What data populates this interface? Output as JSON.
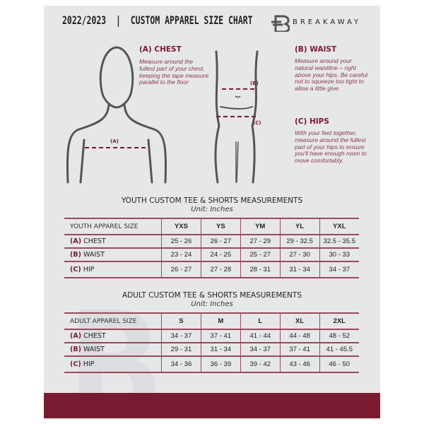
{
  "header": {
    "title": "2022/2023  |  CUSTOM APPAREL SIZE CHART",
    "brand": "BREAKAWAY"
  },
  "measures": {
    "chest": {
      "title": "(A) CHEST",
      "desc": "Measure around the fullest part of your chest, keeping the tape measure parallel to the floor",
      "marker": "(A)"
    },
    "waist": {
      "title": "(B) WAIST",
      "desc": "Measure around your natural waistline – right above your hips. Be careful not to squeeze too tight to allow a little give.",
      "marker": "(B)"
    },
    "hips": {
      "title": "(C) HIPS",
      "desc": "With your feet together, measure around the fullest part of your hips to ensure you'll have enough room to move comfortably.",
      "marker": "(C)"
    }
  },
  "youth": {
    "title": "YOUTH CUSTOM TEE & SHORTS MEASUREMENTS",
    "unit": "Unit: Inches",
    "header": "YOUTH APPAREL SIZE",
    "sizes": [
      "YXS",
      "YS",
      "YM",
      "YL",
      "YXL"
    ],
    "rows": [
      {
        "letter": "(A)",
        "name": "CHEST",
        "values": [
          "25 - 26",
          "26 - 27",
          "27 - 29",
          "29 - 32.5",
          "32.5 - 35.5"
        ]
      },
      {
        "letter": "(B)",
        "name": "WAIST",
        "values": [
          "23 - 24",
          "24 - 25",
          "25 - 27",
          "27 - 30",
          "30 - 33"
        ]
      },
      {
        "letter": "(C)",
        "name": "HIP",
        "values": [
          "26 - 27",
          "27 - 28",
          "28 - 31",
          "31 - 34",
          "34 - 37"
        ]
      }
    ]
  },
  "adult": {
    "title": "ADULT CUSTOM TEE & SHORTS MEASUREMENTS",
    "unit": "Unit: Inches",
    "header": "ADULT APPAREL SIZE",
    "sizes": [
      "S",
      "M",
      "L",
      "XL",
      "2XL"
    ],
    "rows": [
      {
        "letter": "(A)",
        "name": "CHEST",
        "values": [
          "34 - 37",
          "37 - 41",
          "41 - 44",
          "44 - 48",
          "48 - 52"
        ]
      },
      {
        "letter": "(B)",
        "name": "WAIST",
        "values": [
          "29 - 31",
          "31 - 34",
          "34 - 37",
          "37 - 41",
          "41 - 45.5"
        ]
      },
      {
        "letter": "(C)",
        "name": "HIP",
        "values": [
          "34 - 36",
          "36 - 39",
          "39 - 42",
          "43 - 46",
          "46 - 50"
        ]
      }
    ]
  },
  "colors": {
    "accent": "#7a1a30",
    "background": "#e6e7e9"
  }
}
